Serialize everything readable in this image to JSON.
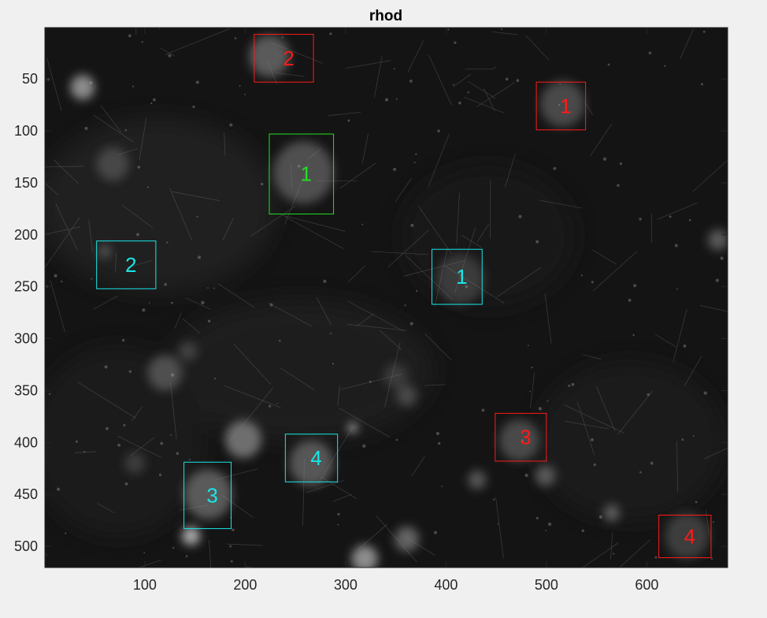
{
  "chart_data": {
    "type": "image",
    "title": "rhod",
    "xlabel": "",
    "ylabel": "",
    "xlim": [
      0.5,
      680.5
    ],
    "ylim": [
      0.5,
      520.5
    ],
    "y_direction": "reverse",
    "xticks": [
      100,
      200,
      300,
      400,
      500,
      600
    ],
    "yticks": [
      50,
      100,
      150,
      200,
      250,
      300,
      350,
      400,
      450,
      500
    ],
    "colors": {
      "red": "#ff1a1a",
      "green": "#22e022",
      "cyan": "#19e6e6"
    },
    "rois": [
      {
        "label": "2",
        "color": "red",
        "x": [
          209,
          268
        ],
        "y": [
          7,
          53
        ]
      },
      {
        "label": "1",
        "color": "red",
        "x": [
          490,
          539
        ],
        "y": [
          53,
          99
        ]
      },
      {
        "label": "1",
        "color": "green",
        "x": [
          224,
          288
        ],
        "y": [
          103,
          180
        ]
      },
      {
        "label": "2",
        "color": "cyan",
        "x": [
          52,
          111
        ],
        "y": [
          206,
          252
        ]
      },
      {
        "label": "1",
        "color": "cyan",
        "x": [
          386,
          436
        ],
        "y": [
          214,
          267
        ]
      },
      {
        "label": "3",
        "color": "red",
        "x": [
          449,
          500
        ],
        "y": [
          372,
          418
        ]
      },
      {
        "label": "4",
        "color": "cyan",
        "x": [
          240,
          292
        ],
        "y": [
          392,
          438
        ]
      },
      {
        "label": "3",
        "color": "cyan",
        "x": [
          139,
          186
        ],
        "y": [
          419,
          483
        ]
      },
      {
        "label": "4",
        "color": "red",
        "x": [
          612,
          664
        ],
        "y": [
          470,
          511
        ]
      }
    ],
    "blobs": [
      {
        "x": 224,
        "y": 28,
        "r": 20,
        "b": 0.3
      },
      {
        "x": 516,
        "y": 74,
        "r": 22,
        "b": 0.22
      },
      {
        "x": 38,
        "y": 58,
        "r": 12,
        "b": 0.55
      },
      {
        "x": 258,
        "y": 140,
        "r": 30,
        "b": 0.25
      },
      {
        "x": 68,
        "y": 132,
        "r": 16,
        "b": 0.2
      },
      {
        "x": 120,
        "y": 333,
        "r": 17,
        "b": 0.25
      },
      {
        "x": 198,
        "y": 397,
        "r": 18,
        "b": 0.4
      },
      {
        "x": 266,
        "y": 420,
        "r": 22,
        "b": 0.28
      },
      {
        "x": 163,
        "y": 450,
        "r": 24,
        "b": 0.3
      },
      {
        "x": 146,
        "y": 490,
        "r": 9,
        "b": 0.7
      },
      {
        "x": 319,
        "y": 512,
        "r": 13,
        "b": 0.55
      },
      {
        "x": 361,
        "y": 493,
        "r": 12,
        "b": 0.35
      },
      {
        "x": 473,
        "y": 398,
        "r": 20,
        "b": 0.22
      },
      {
        "x": 414,
        "y": 243,
        "r": 24,
        "b": 0.14
      },
      {
        "x": 640,
        "y": 490,
        "r": 22,
        "b": 0.16
      },
      {
        "x": 671,
        "y": 205,
        "r": 10,
        "b": 0.3
      },
      {
        "x": 307,
        "y": 386,
        "r": 4,
        "b": 0.95
      },
      {
        "x": 499,
        "y": 432,
        "r": 10,
        "b": 0.3
      },
      {
        "x": 431,
        "y": 436,
        "r": 9,
        "b": 0.28
      },
      {
        "x": 565,
        "y": 468,
        "r": 8,
        "b": 0.32
      },
      {
        "x": 361,
        "y": 355,
        "r": 10,
        "b": 0.22
      },
      {
        "x": 60,
        "y": 216,
        "r": 6,
        "b": 0.3
      },
      {
        "x": 143,
        "y": 312,
        "r": 9,
        "b": 0.18
      },
      {
        "x": 90,
        "y": 420,
        "r": 10,
        "b": 0.16
      },
      {
        "x": 350,
        "y": 336,
        "r": 12,
        "b": 0.14
      }
    ]
  }
}
